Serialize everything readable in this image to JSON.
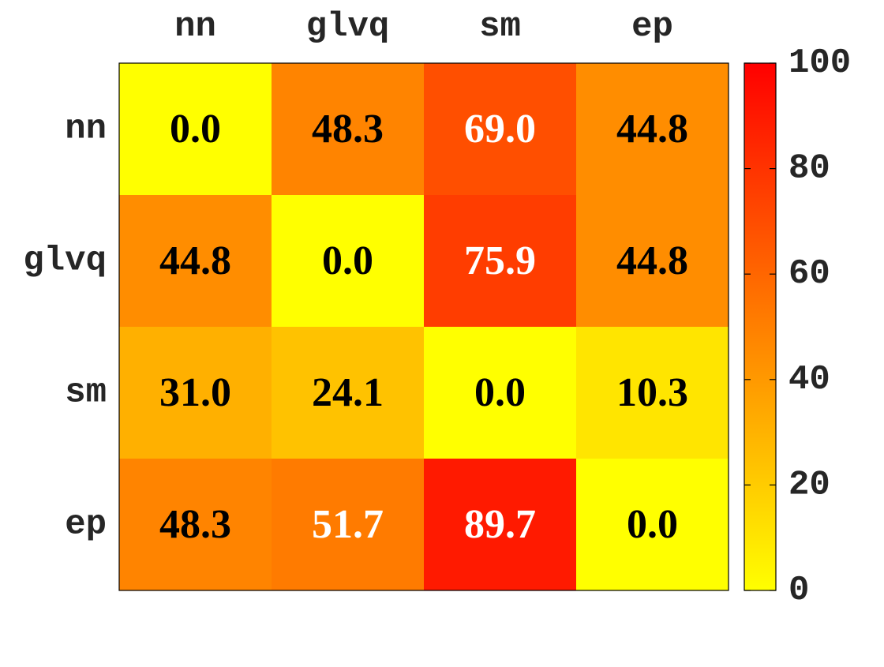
{
  "chart_data": {
    "type": "heatmap",
    "title": "",
    "xlabel": "",
    "ylabel": "",
    "x_categories": [
      "nn",
      "glvq",
      "sm",
      "ep"
    ],
    "y_categories": [
      "nn",
      "glvq",
      "sm",
      "ep"
    ],
    "values": [
      [
        0.0,
        48.3,
        69.0,
        44.8
      ],
      [
        44.8,
        0.0,
        75.9,
        44.8
      ],
      [
        31.0,
        24.1,
        0.0,
        10.3
      ],
      [
        48.3,
        51.7,
        89.7,
        0.0
      ]
    ],
    "value_labels": [
      [
        "0.0",
        "48.3",
        "69.0",
        "44.8"
      ],
      [
        "44.8",
        "0.0",
        "75.9",
        "44.8"
      ],
      [
        "31.0",
        "24.1",
        "0.0",
        "10.3"
      ],
      [
        "48.3",
        "51.7",
        "89.7",
        "0.0"
      ]
    ],
    "x_axis_position": "top",
    "colormap": "autumn (yellow to red)",
    "colormap_low": "#ffff00",
    "colormap_high": "#ff0000",
    "colorbar": {
      "range": [
        0,
        100
      ],
      "ticks": [
        0,
        20,
        40,
        60,
        80,
        100
      ],
      "tick_labels": [
        "0",
        "20",
        "40",
        "60",
        "80",
        "100"
      ],
      "placement": "right"
    },
    "label_color_dark": "#000000",
    "label_color_light": "#ffffff",
    "light_label_threshold": 50
  }
}
